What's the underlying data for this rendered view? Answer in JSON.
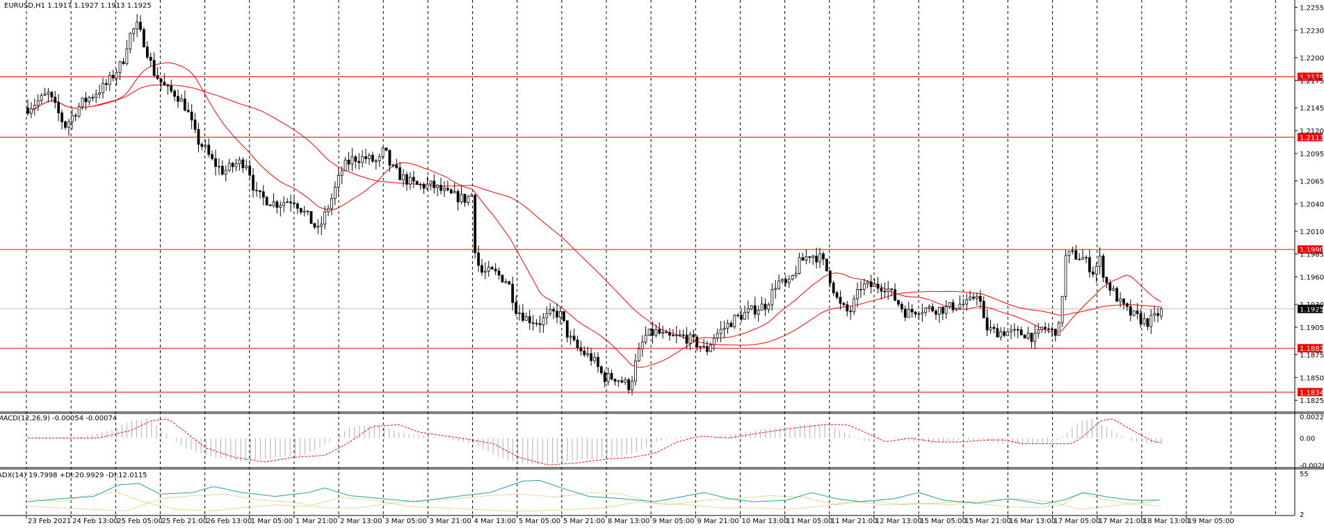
{
  "main_label": "EURUSD,H1  1.1917 1.1927 1.1913 1.1925",
  "macd_label": "MACD(12,26,9) -0.00054 -0.00074",
  "adx_label": "ADX(14) 19.7998 +DI:20.9929 -DI:12.0115",
  "current_price_label": "1.1925",
  "colors": {
    "level_line": "#ff0000",
    "ma": "#ff0000",
    "candle": "#000000",
    "macd_hist": "#b0b0b0",
    "macd_signal": "#ff0000",
    "adx": "#20a0a0",
    "di_plus": "#b8c820",
    "di_minus": "#d8b060"
  },
  "chart_data": [
    {
      "type": "candlestick",
      "symbol": "EURUSD",
      "timeframe": "H1",
      "ohlc_last": {
        "open": 1.1917,
        "high": 1.1927,
        "low": 1.1913,
        "close": 1.1925
      },
      "ylim": [
        1.1813,
        1.2263
      ],
      "y_ticks": [
        "1.2255",
        "1.2230",
        "1.2200",
        "1.2175",
        "1.2145",
        "1.2120",
        "1.2095",
        "1.2065",
        "1.2040",
        "1.2010",
        "1.1985",
        "1.1960",
        "1.1930",
        "1.1905",
        "1.1875",
        "1.1850",
        "1.1825"
      ],
      "y_tick_values": [
        1.2255,
        1.223,
        1.22,
        1.2175,
        1.2145,
        1.212,
        1.2095,
        1.2065,
        1.204,
        1.201,
        1.1985,
        1.196,
        1.193,
        1.1905,
        1.1875,
        1.185,
        1.1825
      ],
      "x_labels": [
        "23 Feb 2021",
        "24 Feb 13:00",
        "25 Feb 05:00",
        "25 Feb 21:00",
        "26 Feb 13:00",
        "1 Mar 05:00",
        "1 Mar 21:00",
        "2 Mar 13:00",
        "3 Mar 05:00",
        "3 Mar 21:00",
        "4 Mar 13:00",
        "5 Mar 05:00",
        "5 Mar 21:00",
        "8 Mar 13:00",
        "9 Mar 05:00",
        "9 Mar 21:00",
        "10 Mar 13:00",
        "11 Mar 05:00",
        "11 Mar 21:00",
        "12 Mar 13:00",
        "15 Mar 05:00",
        "15 Mar 21:00",
        "16 Mar 13:00",
        "17 Mar 05:00",
        "17 Mar 21:00",
        "18 Mar 13:00",
        "19 Mar 05:00"
      ],
      "horizontal_levels": [
        {
          "value": 1.2179,
          "label": "1.2179"
        },
        {
          "value": 1.2113,
          "label": "1.2113"
        },
        {
          "value": 1.199,
          "label": "1.1990"
        },
        {
          "value": 1.1882,
          "label": "1.1882"
        },
        {
          "value": 1.1834,
          "label": "1.1834"
        }
      ],
      "price_anchors": [
        [
          0,
          1.2145
        ],
        [
          25,
          1.216
        ],
        [
          45,
          1.2125
        ],
        [
          65,
          1.215
        ],
        [
          80,
          1.216
        ],
        [
          95,
          1.217
        ],
        [
          115,
          1.2195
        ],
        [
          122,
          1.2222
        ],
        [
          132,
          1.2235
        ],
        [
          142,
          1.2215
        ],
        [
          152,
          1.2185
        ],
        [
          168,
          1.2165
        ],
        [
          180,
          1.216
        ],
        [
          192,
          1.2145
        ],
        [
          205,
          1.211
        ],
        [
          215,
          1.21
        ],
        [
          222,
          1.2088
        ],
        [
          237,
          1.2075
        ],
        [
          255,
          1.2085
        ],
        [
          266,
          1.2085
        ],
        [
          276,
          1.205
        ],
        [
          300,
          1.204
        ],
        [
          322,
          1.2045
        ],
        [
          340,
          1.2025
        ],
        [
          352,
          1.201
        ],
        [
          368,
          1.2045
        ],
        [
          382,
          1.208
        ],
        [
          395,
          1.209
        ],
        [
          410,
          1.209
        ],
        [
          425,
          1.2085
        ],
        [
          432,
          1.21
        ],
        [
          440,
          1.208
        ],
        [
          452,
          1.207
        ],
        [
          470,
          1.206
        ],
        [
          490,
          1.206
        ],
        [
          510,
          1.205
        ],
        [
          530,
          1.2045
        ],
        [
          538,
          1.205
        ],
        [
          543,
          1.198
        ],
        [
          550,
          1.1965
        ],
        [
          565,
          1.1965
        ],
        [
          582,
          1.1955
        ],
        [
          592,
          1.1925
        ],
        [
          604,
          1.1915
        ],
        [
          620,
          1.191
        ],
        [
          635,
          1.192
        ],
        [
          645,
          1.192
        ],
        [
          655,
          1.1895
        ],
        [
          668,
          1.188
        ],
        [
          685,
          1.187
        ],
        [
          698,
          1.185
        ],
        [
          712,
          1.185
        ],
        [
          722,
          1.1845
        ],
        [
          730,
          1.184
        ],
        [
          738,
          1.187
        ],
        [
          748,
          1.1895
        ],
        [
          762,
          1.19
        ],
        [
          775,
          1.1893
        ],
        [
          795,
          1.1895
        ],
        [
          815,
          1.1885
        ],
        [
          822,
          1.1878
        ],
        [
          832,
          1.1895
        ],
        [
          845,
          1.1905
        ],
        [
          858,
          1.1915
        ],
        [
          870,
          1.192
        ],
        [
          882,
          1.1925
        ],
        [
          896,
          1.193
        ],
        [
          908,
          1.1955
        ],
        [
          922,
          1.195
        ],
        [
          935,
          1.1975
        ],
        [
          948,
          1.1985
        ],
        [
          962,
          1.198
        ],
        [
          972,
          1.196
        ],
        [
          983,
          1.193
        ],
        [
          996,
          1.192
        ],
        [
          1010,
          1.195
        ],
        [
          1025,
          1.195
        ],
        [
          1040,
          1.195
        ],
        [
          1052,
          1.1935
        ],
        [
          1065,
          1.192
        ],
        [
          1080,
          1.1925
        ],
        [
          1095,
          1.1925
        ],
        [
          1112,
          1.1925
        ],
        [
          1128,
          1.193
        ],
        [
          1140,
          1.193
        ],
        [
          1152,
          1.1945
        ],
        [
          1160,
          1.1905
        ],
        [
          1172,
          1.19
        ],
        [
          1185,
          1.19
        ],
        [
          1198,
          1.1898
        ],
        [
          1212,
          1.1898
        ],
        [
          1222,
          1.1892
        ],
        [
          1230,
          1.1905
        ],
        [
          1242,
          1.19
        ],
        [
          1252,
          1.1905
        ],
        [
          1256,
          1.198
        ],
        [
          1264,
          1.1985
        ],
        [
          1280,
          1.198
        ],
        [
          1292,
          1.1965
        ],
        [
          1300,
          1.198
        ],
        [
          1306,
          1.1955
        ],
        [
          1315,
          1.1945
        ],
        [
          1325,
          1.193
        ],
        [
          1336,
          1.192
        ],
        [
          1346,
          1.1915
        ],
        [
          1356,
          1.191
        ],
        [
          1366,
          1.1915
        ],
        [
          1374,
          1.1925
        ]
      ]
    },
    {
      "type": "line",
      "name": "MACD(12,26,9)",
      "values_last": {
        "main": -0.00054,
        "signal": -0.00074
      },
      "ylim": [
        -0.003,
        0.0025
      ],
      "y_ticks": [
        "0.00223",
        "0.00",
        "-0.00283"
      ],
      "y_tick_values": [
        0.00223,
        0.0,
        -0.00283
      ],
      "anchors": [
        [
          0,
          0.0
        ],
        [
          60,
          0.0
        ],
        [
          100,
          0.0008
        ],
        [
          125,
          0.0018
        ],
        [
          145,
          0.002
        ],
        [
          168,
          0.0005
        ],
        [
          190,
          -0.001
        ],
        [
          225,
          -0.002
        ],
        [
          262,
          -0.0025
        ],
        [
          298,
          -0.002
        ],
        [
          335,
          -0.0018
        ],
        [
          362,
          -0.0006
        ],
        [
          392,
          0.0012
        ],
        [
          425,
          0.0014
        ],
        [
          450,
          0.0006
        ],
        [
          500,
          0.0
        ],
        [
          540,
          -0.0006
        ],
        [
          570,
          -0.002
        ],
        [
          605,
          -0.0028
        ],
        [
          640,
          -0.0026
        ],
        [
          675,
          -0.0022
        ],
        [
          708,
          -0.002
        ],
        [
          735,
          -0.0016
        ],
        [
          762,
          -0.0004
        ],
        [
          790,
          0.0002
        ],
        [
          825,
          0.0
        ],
        [
          860,
          0.0005
        ],
        [
          900,
          0.001
        ],
        [
          940,
          0.0014
        ],
        [
          968,
          0.0014
        ],
        [
          990,
          0.0006
        ],
        [
          1015,
          -0.0004
        ],
        [
          1045,
          0.0
        ],
        [
          1075,
          -0.0004
        ],
        [
          1105,
          -0.0004
        ],
        [
          1140,
          -0.0002
        ],
        [
          1160,
          -0.0002
        ],
        [
          1180,
          -0.0006
        ],
        [
          1210,
          -0.0006
        ],
        [
          1240,
          -0.0006
        ],
        [
          1255,
          0.0002
        ],
        [
          1275,
          0.0018
        ],
        [
          1290,
          0.002
        ],
        [
          1310,
          0.001
        ],
        [
          1340,
          -0.0004
        ],
        [
          1374,
          -0.0006
        ]
      ]
    },
    {
      "type": "line",
      "name": "ADX(14)",
      "values_last": {
        "adx": 19.7998,
        "plus_di": 20.9929,
        "minus_di": 12.0115
      },
      "ylim": [
        0,
        60
      ],
      "y_ticks": [
        "55",
        "2"
      ],
      "y_tick_values": [
        55,
        2
      ],
      "adx_anchors": [
        [
          0,
          18
        ],
        [
          40,
          22
        ],
        [
          80,
          25
        ],
        [
          110,
          40
        ],
        [
          135,
          42
        ],
        [
          160,
          28
        ],
        [
          200,
          30
        ],
        [
          225,
          38
        ],
        [
          260,
          30
        ],
        [
          300,
          25
        ],
        [
          340,
          30
        ],
        [
          360,
          36
        ],
        [
          390,
          26
        ],
        [
          430,
          22
        ],
        [
          470,
          18
        ],
        [
          520,
          25
        ],
        [
          560,
          30
        ],
        [
          600,
          45
        ],
        [
          620,
          46
        ],
        [
          650,
          35
        ],
        [
          680,
          25
        ],
        [
          720,
          22
        ],
        [
          760,
          18
        ],
        [
          800,
          26
        ],
        [
          820,
          30
        ],
        [
          850,
          22
        ],
        [
          880,
          18
        ],
        [
          920,
          20
        ],
        [
          950,
          30
        ],
        [
          980,
          22
        ],
        [
          1010,
          18
        ],
        [
          1050,
          22
        ],
        [
          1080,
          30
        ],
        [
          1110,
          20
        ],
        [
          1150,
          16
        ],
        [
          1190,
          22
        ],
        [
          1230,
          15
        ],
        [
          1255,
          20
        ],
        [
          1280,
          30
        ],
        [
          1310,
          24
        ],
        [
          1340,
          20
        ],
        [
          1374,
          20
        ]
      ],
      "plus_di_anchors": [
        [
          0,
          22
        ],
        [
          40,
          18
        ],
        [
          80,
          28
        ],
        [
          110,
          30
        ],
        [
          140,
          18
        ],
        [
          180,
          8
        ],
        [
          220,
          6
        ],
        [
          260,
          10
        ],
        [
          300,
          14
        ],
        [
          340,
          12
        ],
        [
          380,
          24
        ],
        [
          420,
          20
        ],
        [
          460,
          12
        ],
        [
          500,
          10
        ],
        [
          540,
          8
        ],
        [
          580,
          6
        ],
        [
          620,
          6
        ],
        [
          660,
          8
        ],
        [
          700,
          10
        ],
        [
          740,
          18
        ],
        [
          780,
          14
        ],
        [
          820,
          20
        ],
        [
          860,
          22
        ],
        [
          900,
          26
        ],
        [
          940,
          24
        ],
        [
          980,
          14
        ],
        [
          1020,
          20
        ],
        [
          1060,
          14
        ],
        [
          1100,
          16
        ],
        [
          1140,
          18
        ],
        [
          1180,
          12
        ],
        [
          1220,
          10
        ],
        [
          1255,
          14
        ],
        [
          1275,
          30
        ],
        [
          1300,
          22
        ],
        [
          1340,
          14
        ],
        [
          1374,
          21
        ]
      ],
      "minus_di_anchors": [
        [
          0,
          12
        ],
        [
          40,
          10
        ],
        [
          80,
          8
        ],
        [
          120,
          6
        ],
        [
          160,
          22
        ],
        [
          200,
          26
        ],
        [
          240,
          28
        ],
        [
          280,
          20
        ],
        [
          320,
          18
        ],
        [
          360,
          10
        ],
        [
          400,
          10
        ],
        [
          440,
          16
        ],
        [
          480,
          20
        ],
        [
          520,
          22
        ],
        [
          560,
          26
        ],
        [
          600,
          28
        ],
        [
          640,
          24
        ],
        [
          680,
          30
        ],
        [
          720,
          28
        ],
        [
          760,
          16
        ],
        [
          800,
          14
        ],
        [
          840,
          10
        ],
        [
          880,
          10
        ],
        [
          920,
          8
        ],
        [
          960,
          12
        ],
        [
          1000,
          18
        ],
        [
          1040,
          14
        ],
        [
          1080,
          16
        ],
        [
          1120,
          14
        ],
        [
          1160,
          20
        ],
        [
          1200,
          22
        ],
        [
          1240,
          18
        ],
        [
          1275,
          8
        ],
        [
          1310,
          12
        ],
        [
          1340,
          16
        ],
        [
          1374,
          12
        ]
      ]
    }
  ]
}
